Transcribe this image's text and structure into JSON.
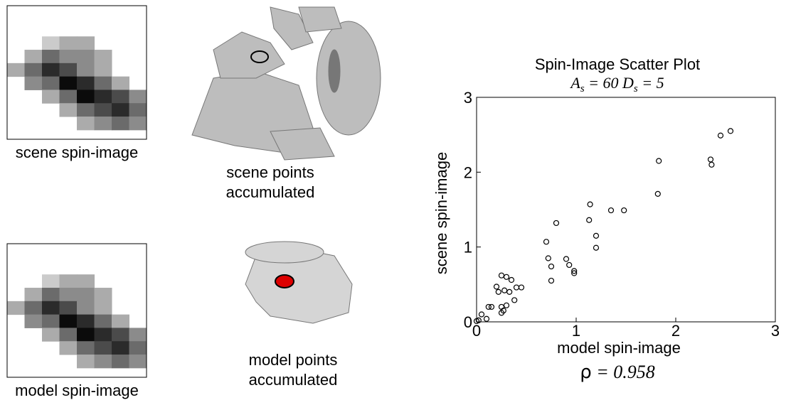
{
  "panels": {
    "scene_spin_label": "scene spin-image",
    "scene_points_label": [
      "scene points",
      "accumulated"
    ],
    "model_spin_label": "model spin-image",
    "model_points_label": [
      "model points",
      "accumulated"
    ]
  },
  "chart_data": {
    "type": "scatter",
    "title": "Spin-Image Scatter Plot",
    "subtitle": [
      "A",
      "s",
      " = 60 D",
      "s",
      " = 5"
    ],
    "annotation": [
      "ρ",
      " = 0.958"
    ],
    "x_label": "model spin-image",
    "y_label": "scene spin-image",
    "xlim": [
      0,
      3
    ],
    "ylim": [
      0,
      3
    ],
    "xticks": [
      0,
      1,
      2,
      3
    ],
    "yticks": [
      0,
      1,
      2,
      3
    ],
    "color": "#000000",
    "x": [
      2.55,
      2.45,
      2.35,
      2.36,
      1.83,
      1.82,
      1.14,
      1.13,
      1.35,
      1.48,
      1.2,
      1.2,
      0.8,
      0.7,
      0.72,
      0.75,
      0.75,
      0.9,
      0.93,
      0.98,
      0.98,
      0.25,
      0.3,
      0.35,
      0.2,
      0.22,
      0.28,
      0.33,
      0.4,
      0.45,
      0.38,
      0.25,
      0.27,
      0.25,
      0.3,
      0.15,
      0.12,
      0.05,
      0.1,
      0.02,
      0
    ],
    "values": [
      2.55,
      2.49,
      2.17,
      2.1,
      2.15,
      1.71,
      1.57,
      1.36,
      1.49,
      1.49,
      1.15,
      0.99,
      1.32,
      1.07,
      0.85,
      0.74,
      0.55,
      0.84,
      0.76,
      0.68,
      0.65,
      0.62,
      0.6,
      0.56,
      0.47,
      0.4,
      0.42,
      0.4,
      0.46,
      0.46,
      0.29,
      0.2,
      0.15,
      0.12,
      0.22,
      0.2,
      0.2,
      0.1,
      0.04,
      0.02,
      0.01
    ]
  }
}
